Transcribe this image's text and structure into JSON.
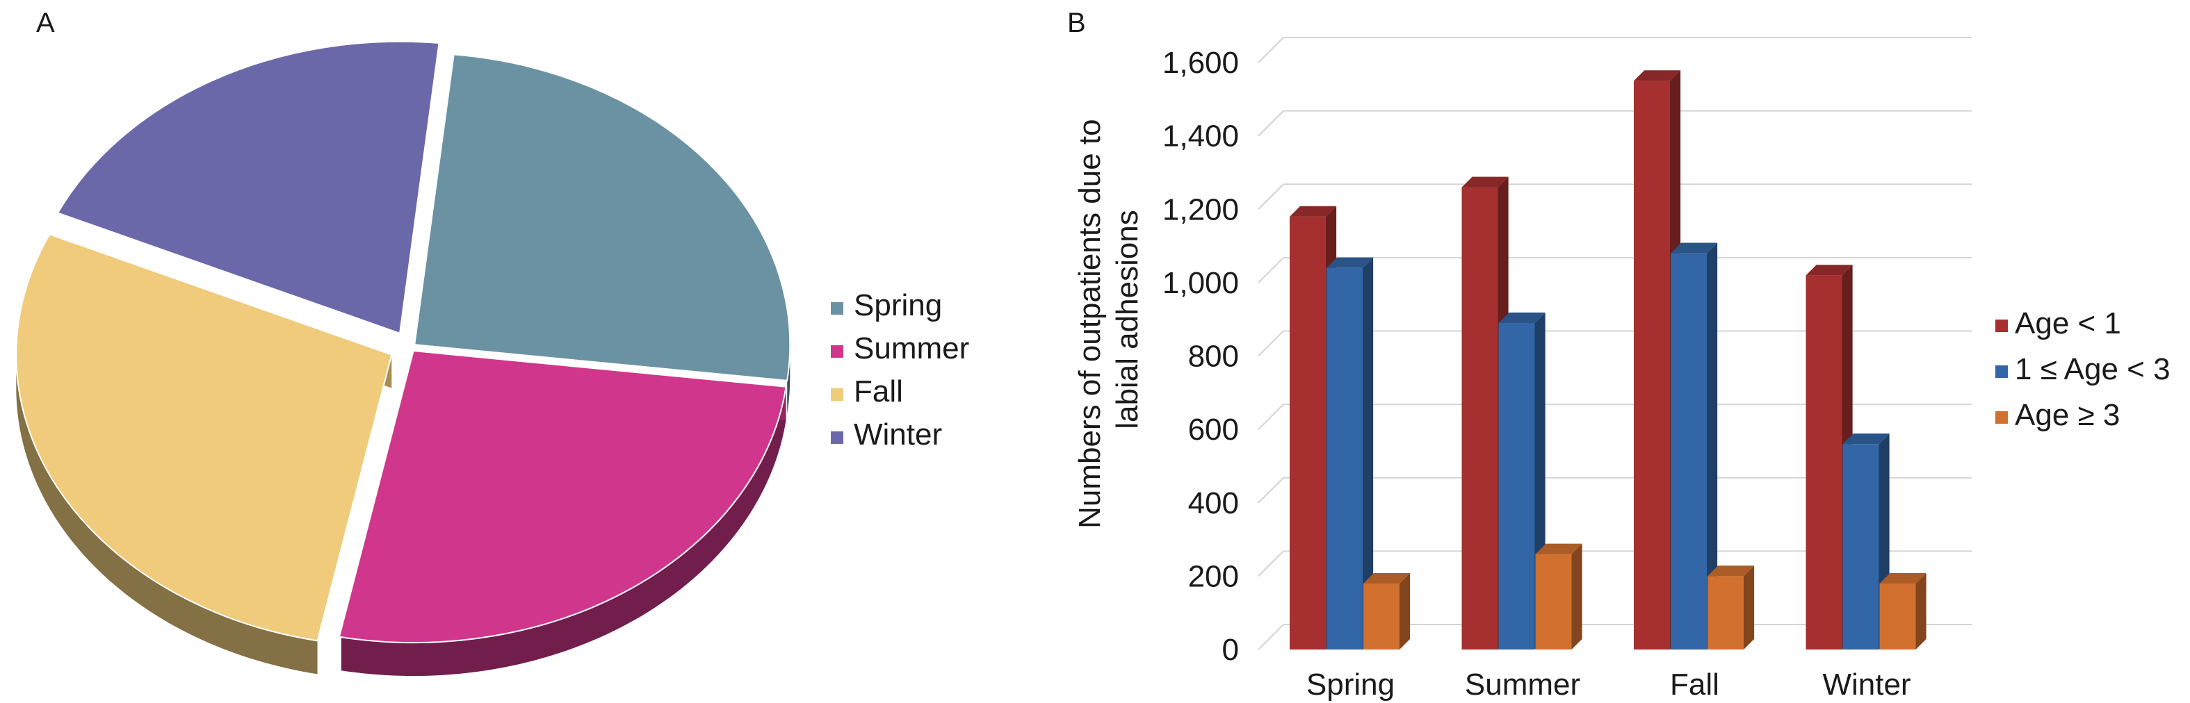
{
  "panels": {
    "a_label": "A",
    "b_label": "B"
  },
  "chart_data": [
    {
      "type": "pie",
      "panel": "A",
      "categories": [
        "Spring",
        "Summer",
        "Fall",
        "Winter"
      ],
      "values": [
        25.3,
        26.2,
        28.6,
        19.9
      ],
      "colors": [
        "#6b92a3",
        "#d0378c",
        "#efcb7b",
        "#6b68aa"
      ],
      "legend": {
        "placement": "right",
        "entries": [
          "Spring",
          "Summer",
          "Fall",
          "Winter"
        ]
      },
      "style": "3d-exploded"
    },
    {
      "type": "bar",
      "panel": "B",
      "style": "3d-clustered",
      "categories": [
        "Spring",
        "Summer",
        "Fall",
        "Winter"
      ],
      "series": [
        {
          "name": "Age < 1",
          "values": [
            1180,
            1260,
            1550,
            1020
          ],
          "color": "#a6302f"
        },
        {
          "name": "1 ≤ Age < 3",
          "values": [
            1040,
            890,
            1080,
            560
          ],
          "color": "#3366a6"
        },
        {
          "name": "Age ≥ 3",
          "values": [
            180,
            260,
            200,
            180
          ],
          "color": "#d1702f"
        }
      ],
      "ylabel_lines": [
        "Numbers of outpatients due to",
        "labial adhesions"
      ],
      "ylim": [
        0,
        1600
      ],
      "yticks": [
        0,
        200,
        400,
        600,
        800,
        1000,
        1200,
        1400,
        1600
      ],
      "ytick_labels": [
        "0",
        "200",
        "400",
        "600",
        "800",
        "1,000",
        "1,200",
        "1,400",
        "1,600"
      ],
      "grid": true,
      "legend": {
        "placement": "right",
        "entries": [
          "Age < 1",
          "1 ≤ Age < 3",
          "Age ≥ 3"
        ]
      }
    }
  ]
}
